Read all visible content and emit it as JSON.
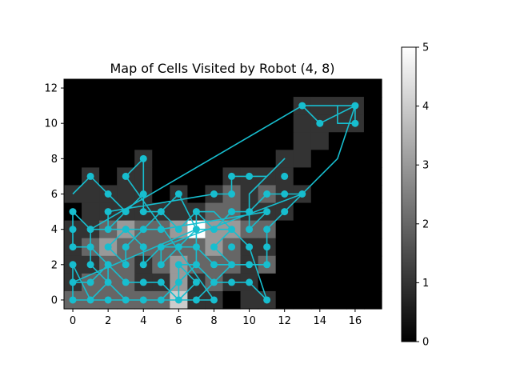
{
  "chart_data": {
    "type": "heatmap",
    "title": "Map of Cells Visited by Robot (4, 8)",
    "xlabel": "",
    "ylabel": "",
    "xlim": [
      -0.5,
      17.5
    ],
    "ylim": [
      -0.5,
      12.5
    ],
    "x_ticks": [
      "0",
      "2",
      "4",
      "6",
      "8",
      "10",
      "12",
      "14",
      "16"
    ],
    "y_ticks": [
      "0",
      "2",
      "4",
      "6",
      "8",
      "10",
      "12"
    ],
    "colorbar": {
      "min": 0,
      "max": 5,
      "ticks": [
        "0",
        "1",
        "2",
        "3",
        "4",
        "5"
      ],
      "colormap": "gray"
    },
    "grid": false,
    "path_color": "#17becf",
    "visit_counts": {
      "x_range": [
        0,
        17
      ],
      "y_range": [
        0,
        12
      ],
      "rows_top_to_bottom": [
        [
          0,
          0,
          0,
          0,
          0,
          0,
          0,
          0,
          0,
          0,
          0,
          0,
          0,
          0,
          0,
          0,
          0,
          0
        ],
        [
          0,
          0,
          0,
          0,
          0,
          0,
          0,
          0,
          0,
          0,
          0,
          0,
          0,
          1,
          1,
          1,
          1,
          0
        ],
        [
          0,
          0,
          0,
          0,
          0,
          0,
          0,
          0,
          0,
          0,
          0,
          0,
          0,
          1,
          1,
          1,
          1,
          0
        ],
        [
          0,
          0,
          0,
          0,
          0,
          0,
          0,
          0,
          0,
          0,
          0,
          0,
          0,
          1,
          1,
          0,
          0,
          0
        ],
        [
          0,
          0,
          0,
          0,
          1,
          0,
          0,
          0,
          0,
          0,
          0,
          0,
          1,
          1,
          0,
          0,
          0,
          0
        ],
        [
          0,
          1,
          0,
          1,
          1,
          0,
          0,
          0,
          0,
          1,
          1,
          1,
          1,
          0,
          0,
          0,
          0,
          0
        ],
        [
          1,
          1,
          1,
          1,
          1,
          0,
          1,
          0,
          1,
          2,
          1,
          2,
          1,
          1,
          0,
          0,
          0,
          0
        ],
        [
          0,
          1,
          1,
          1,
          1,
          1,
          1,
          1,
          2,
          2,
          1,
          1,
          1,
          0,
          0,
          0,
          0,
          0
        ],
        [
          1,
          1,
          2,
          3,
          2,
          2,
          3,
          5,
          3,
          3,
          2,
          2,
          0,
          0,
          0,
          0,
          0,
          0
        ],
        [
          1,
          2,
          3,
          2,
          2,
          2,
          2,
          2,
          3,
          2,
          1,
          1,
          0,
          0,
          0,
          0,
          0,
          0
        ],
        [
          1,
          1,
          2,
          2,
          1,
          2,
          3,
          2,
          2,
          2,
          1,
          2,
          0,
          0,
          0,
          0,
          0,
          0
        ],
        [
          1,
          2,
          2,
          2,
          1,
          1,
          3,
          1,
          2,
          1,
          1,
          0,
          0,
          0,
          0,
          0,
          0,
          0
        ],
        [
          2,
          2,
          2,
          2,
          2,
          2,
          4,
          1,
          1,
          0,
          1,
          1,
          0,
          0,
          0,
          0,
          0,
          0
        ]
      ]
    },
    "robot_path": [
      [
        0,
        6
      ],
      [
        1,
        7
      ],
      [
        2,
        6
      ],
      [
        3,
        5
      ],
      [
        4,
        6
      ],
      [
        4,
        5
      ],
      [
        5,
        5
      ],
      [
        6,
        4
      ],
      [
        7,
        5
      ],
      [
        8,
        4
      ],
      [
        9,
        5
      ],
      [
        10,
        5
      ],
      [
        11,
        6
      ],
      [
        12,
        6
      ],
      [
        13,
        6
      ],
      [
        12,
        5
      ],
      [
        11,
        4
      ],
      [
        11,
        3
      ],
      [
        11,
        2
      ],
      [
        10,
        2
      ],
      [
        9,
        2
      ],
      [
        8,
        2
      ],
      [
        7,
        3
      ],
      [
        6,
        3
      ],
      [
        5,
        3
      ],
      [
        4,
        2
      ],
      [
        4,
        3
      ],
      [
        3,
        4
      ],
      [
        2,
        4
      ],
      [
        1,
        4
      ],
      [
        0,
        5
      ],
      [
        0,
        4
      ],
      [
        0,
        3
      ],
      [
        1,
        3
      ],
      [
        2,
        2
      ],
      [
        2,
        1
      ],
      [
        3,
        0
      ],
      [
        4,
        0
      ],
      [
        5,
        0
      ],
      [
        6,
        1
      ],
      [
        6,
        2
      ],
      [
        7,
        2
      ],
      [
        8,
        1
      ],
      [
        9,
        1
      ],
      [
        10,
        1
      ],
      [
        11,
        0
      ],
      [
        10,
        3
      ],
      [
        9,
        4
      ],
      [
        8,
        4
      ],
      [
        7,
        4
      ],
      [
        7,
        5
      ],
      [
        8,
        5
      ],
      [
        9,
        4
      ],
      [
        8,
        3
      ],
      [
        9,
        2
      ],
      [
        8,
        1
      ],
      [
        7,
        0
      ],
      [
        6,
        0
      ],
      [
        5,
        1
      ],
      [
        4,
        1
      ],
      [
        3,
        1
      ],
      [
        2,
        2
      ],
      [
        1,
        1
      ],
      [
        0,
        1
      ],
      [
        0,
        2
      ],
      [
        0,
        0
      ],
      [
        1,
        0
      ],
      [
        2,
        0
      ],
      [
        3,
        0
      ],
      [
        4,
        0
      ],
      [
        5,
        0
      ],
      [
        6,
        0
      ],
      [
        7,
        0
      ],
      [
        8,
        0
      ],
      [
        3,
        7
      ],
      [
        4,
        8
      ],
      [
        4,
        6
      ],
      [
        3,
        5
      ],
      [
        2,
        4
      ],
      [
        2,
        5
      ],
      [
        8,
        6
      ],
      [
        9,
        6
      ],
      [
        9,
        7
      ],
      [
        10,
        7
      ],
      [
        11,
        7
      ],
      [
        12,
        8
      ],
      [
        10,
        6
      ],
      [
        10,
        4
      ],
      [
        11,
        5
      ],
      [
        5,
        4
      ],
      [
        4,
        4
      ],
      [
        3,
        4
      ],
      [
        2,
        3
      ],
      [
        3,
        2
      ],
      [
        3,
        3
      ],
      [
        6,
        6
      ],
      [
        7,
        4
      ],
      [
        6,
        3
      ],
      [
        5,
        2
      ],
      [
        5,
        3
      ],
      [
        13,
        6
      ],
      [
        14,
        7
      ],
      [
        15,
        8
      ],
      [
        16,
        11
      ],
      [
        13,
        11
      ],
      [
        14,
        10
      ],
      [
        16,
        11
      ],
      [
        16,
        10
      ],
      [
        15,
        10
      ],
      [
        15,
        11
      ],
      [
        14,
        11
      ],
      [
        13,
        11
      ],
      [
        1,
        4
      ],
      [
        1,
        2
      ],
      [
        2,
        1
      ],
      [
        1,
        0
      ],
      [
        0,
        2
      ],
      [
        0,
        1
      ],
      [
        7,
        4
      ],
      [
        7,
        2
      ],
      [
        6,
        1
      ],
      [
        6,
        0
      ],
      [
        7,
        1
      ],
      [
        6,
        2
      ]
    ],
    "robot_points": [
      [
        0,
        0
      ],
      [
        1,
        0
      ],
      [
        2,
        0
      ],
      [
        3,
        0
      ],
      [
        4,
        0
      ],
      [
        5,
        0
      ],
      [
        6,
        0
      ],
      [
        7,
        0
      ],
      [
        8,
        0
      ],
      [
        11,
        0
      ],
      [
        0,
        1
      ],
      [
        1,
        1
      ],
      [
        2,
        1
      ],
      [
        3,
        1
      ],
      [
        4,
        1
      ],
      [
        5,
        1
      ],
      [
        6,
        1
      ],
      [
        7,
        1
      ],
      [
        8,
        1
      ],
      [
        9,
        1
      ],
      [
        10,
        1
      ],
      [
        0,
        2
      ],
      [
        1,
        2
      ],
      [
        2,
        2
      ],
      [
        3,
        2
      ],
      [
        4,
        2
      ],
      [
        5,
        2
      ],
      [
        6,
        2
      ],
      [
        7,
        2
      ],
      [
        8,
        2
      ],
      [
        9,
        2
      ],
      [
        10,
        2
      ],
      [
        11,
        2
      ],
      [
        0,
        3
      ],
      [
        1,
        3
      ],
      [
        2,
        3
      ],
      [
        3,
        3
      ],
      [
        4,
        3
      ],
      [
        5,
        3
      ],
      [
        6,
        3
      ],
      [
        7,
        3
      ],
      [
        8,
        3
      ],
      [
        9,
        3
      ],
      [
        10,
        3
      ],
      [
        11,
        3
      ],
      [
        0,
        4
      ],
      [
        1,
        4
      ],
      [
        2,
        4
      ],
      [
        3,
        4
      ],
      [
        4,
        4
      ],
      [
        5,
        4
      ],
      [
        6,
        4
      ],
      [
        7,
        4
      ],
      [
        8,
        4
      ],
      [
        9,
        4
      ],
      [
        10,
        4
      ],
      [
        11,
        4
      ],
      [
        0,
        5
      ],
      [
        2,
        5
      ],
      [
        3,
        5
      ],
      [
        4,
        5
      ],
      [
        5,
        5
      ],
      [
        7,
        5
      ],
      [
        9,
        5
      ],
      [
        10,
        5
      ],
      [
        11,
        5
      ],
      [
        12,
        5
      ],
      [
        2,
        6
      ],
      [
        4,
        6
      ],
      [
        6,
        6
      ],
      [
        8,
        6
      ],
      [
        9,
        6
      ],
      [
        11,
        6
      ],
      [
        12,
        6
      ],
      [
        13,
        6
      ],
      [
        1,
        7
      ],
      [
        3,
        7
      ],
      [
        9,
        7
      ],
      [
        10,
        7
      ],
      [
        12,
        7
      ],
      [
        4,
        8
      ],
      [
        14,
        10
      ],
      [
        16,
        10
      ],
      [
        13,
        11
      ],
      [
        16,
        11
      ]
    ]
  }
}
